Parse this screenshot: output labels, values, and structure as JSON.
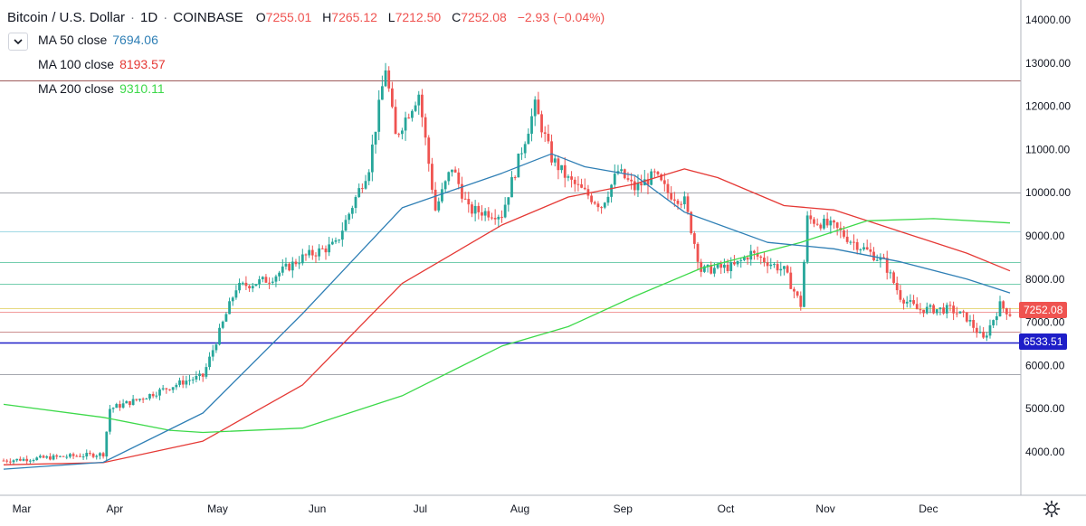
{
  "header": {
    "symbol": "Bitcoin / U.S. Dollar",
    "interval": "1D",
    "exchange": "COINBASE",
    "open_key": "O",
    "open": "7255.01",
    "high_key": "H",
    "high": "7265.12",
    "low_key": "L",
    "low": "7212.50",
    "close_key": "C",
    "close": "7252.08",
    "change": "−2.93 (−0.04%)",
    "sep": "·"
  },
  "indicators": [
    {
      "label": "MA 50 close",
      "value": "7694.06",
      "color": "#2f7fb5"
    },
    {
      "label": "MA 100 close",
      "value": "8193.57",
      "color": "#e53935"
    },
    {
      "label": "MA 200 close",
      "value": "9310.11",
      "color": "#3dd94a"
    }
  ],
  "price_tags": {
    "last": "7252.08",
    "last_color": "#ef5350",
    "level": "6533.51",
    "level_color": "#1e1ec8"
  },
  "chart_data": {
    "type": "candlestick",
    "title": "Bitcoin / U.S. Dollar · 1D · COINBASE",
    "x_labels": [
      "Mar",
      "Apr",
      "May",
      "Jun",
      "Jul",
      "Aug",
      "Sep",
      "Oct",
      "Nov",
      "Dec"
    ],
    "y_ticks": [
      "4000.00",
      "5000.00",
      "6000.00",
      "7000.00",
      "8000.00",
      "9000.00",
      "10000.00",
      "11000.00",
      "12000.00",
      "13000.00",
      "14000.00"
    ],
    "ylim": [
      3000,
      14400
    ],
    "up_color": "#26a69a",
    "down_color": "#ef5350",
    "close_path": [
      [
        0,
        3800
      ],
      [
        30,
        3950
      ],
      [
        32,
        5000
      ],
      [
        40,
        5200
      ],
      [
        55,
        5650
      ],
      [
        60,
        5750
      ],
      [
        70,
        7800
      ],
      [
        80,
        8000
      ],
      [
        90,
        8500
      ],
      [
        100,
        8800
      ],
      [
        110,
        10600
      ],
      [
        115,
        12900
      ],
      [
        118,
        11300
      ],
      [
        125,
        12300
      ],
      [
        130,
        9600
      ],
      [
        135,
        10600
      ],
      [
        140,
        9600
      ],
      [
        150,
        9500
      ],
      [
        160,
        12000
      ],
      [
        165,
        10800
      ],
      [
        170,
        10300
      ],
      [
        175,
        10000
      ],
      [
        180,
        9700
      ],
      [
        185,
        10500
      ],
      [
        190,
        10100
      ],
      [
        196,
        10400
      ],
      [
        200,
        10000
      ],
      [
        205,
        9800
      ],
      [
        210,
        8200
      ],
      [
        220,
        8300
      ],
      [
        225,
        8600
      ],
      [
        235,
        8200
      ],
      [
        240,
        7400
      ],
      [
        242,
        9400
      ],
      [
        250,
        9200
      ],
      [
        255,
        8900
      ],
      [
        265,
        8400
      ],
      [
        270,
        7600
      ],
      [
        275,
        7300
      ],
      [
        285,
        7300
      ],
      [
        290,
        7100
      ],
      [
        295,
        6600
      ],
      [
        300,
        7400
      ],
      [
        303,
        7200
      ]
    ],
    "ma_50": [
      [
        0,
        3600
      ],
      [
        30,
        3760
      ],
      [
        60,
        4900
      ],
      [
        90,
        7200
      ],
      [
        120,
        9650
      ],
      [
        150,
        10450
      ],
      [
        160,
        10750
      ],
      [
        165,
        10900
      ],
      [
        175,
        10600
      ],
      [
        190,
        10400
      ],
      [
        205,
        9550
      ],
      [
        230,
        8850
      ],
      [
        250,
        8700
      ],
      [
        270,
        8400
      ],
      [
        290,
        8000
      ],
      [
        303,
        7680
      ]
    ],
    "ma_100": [
      [
        0,
        3700
      ],
      [
        30,
        3750
      ],
      [
        60,
        4250
      ],
      [
        90,
        5550
      ],
      [
        120,
        7900
      ],
      [
        150,
        9250
      ],
      [
        170,
        9900
      ],
      [
        190,
        10200
      ],
      [
        205,
        10550
      ],
      [
        215,
        10350
      ],
      [
        235,
        9700
      ],
      [
        250,
        9600
      ],
      [
        270,
        9100
      ],
      [
        290,
        8600
      ],
      [
        303,
        8190
      ]
    ],
    "ma_200": [
      [
        0,
        5100
      ],
      [
        30,
        4800
      ],
      [
        50,
        4500
      ],
      [
        60,
        4450
      ],
      [
        90,
        4550
      ],
      [
        120,
        5300
      ],
      [
        150,
        6450
      ],
      [
        170,
        6900
      ],
      [
        190,
        7600
      ],
      [
        210,
        8250
      ],
      [
        240,
        8850
      ],
      [
        260,
        9350
      ],
      [
        280,
        9400
      ],
      [
        303,
        9300
      ]
    ],
    "levels": [
      12600,
      10000,
      9100,
      8400,
      7900,
      7330,
      7250,
      6780,
      6530,
      5800
    ]
  }
}
